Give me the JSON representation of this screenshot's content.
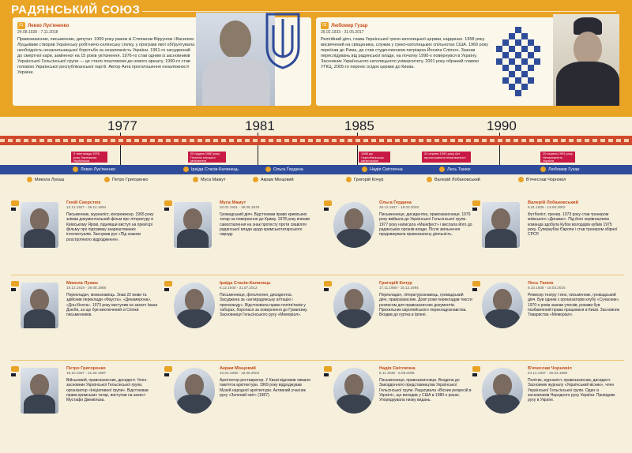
{
  "page": {
    "title": "РАДЯНСЬКИЙ СОЮЗ"
  },
  "featured": [
    {
      "name": "Левко Лук'яненко",
      "dates": "24.08.1928 - 7.11.2018",
      "text": "Правозахисник, письменник, депутат. 1959 року разом зі Степаном Вірууном і Василем Луцьківим створив Українську робітничо-селянську спілку, у програмі якої обґрунтувала необхідність ненасильницької боротьби за незалежність України. 1961-го засуджений до смертної кари, заміненої на 15 років ув'язнення. 1976-го став одним із засновників Української Гельсінської групи — це стало поштовхом до нового арешту. 1990-го став головою Української республіканської партії. Автор Акта проголошення незалежності України."
    },
    {
      "name": "Любомир Гузар",
      "dates": "26.02.1933 - 31.05.2017",
      "text": "Релігійний діяч, глава Української греко-католицької церкви, кардинал. 1958 року висвячений на священика, служив у греко-католицьких спільнотах США. 1969 року переїхав до Рима, де став студентиенком патріарха Йосипа Сліпого. Зазнав переслідувань від радянської влади, на початку 1990-х повернувся в Україну. Засновник Українського католицького університету. 2001 року обраний главою УГКЦ, 2005-го переніс осідок церкви до Києва."
    }
  ],
  "timeline": {
    "years": [
      "1977",
      "1981",
      "1985",
      "1990"
    ],
    "events": [
      "9 листопада 1976 року Заснована Українська Гельсінська група",
      "20 грудня 1980 року Початок першого ув'язнення",
      "1986 рік Чорнобильська катастрофа",
      "24 серпня 1991 року Акт проголошення незалежності",
      "20 серпня 1991 року Незалежність України"
    ],
    "bar_names": [
      "Левко Лук'яненко",
      "Іраїда Стасів-Калинець",
      "Ольга Ґердина",
      "Надія Світлична",
      "Лесь Танюк",
      "Любомир Гузар"
    ],
    "below_names": [
      "Микола Лукаш",
      "Петро Григоренко",
      "Муса Мамут",
      "Акрам Мінцовий",
      "Григорій Кочур",
      "Валерій Лобановський",
      "В'ячеслав Чорновіл"
    ]
  },
  "cards": [
    {
      "name": "Геній Сверстюк",
      "dates": "13.12.1927 - 28.12.1994",
      "text": "Письменник, журналіст, кінорежисер. 1965 року знімав документальний фільм про літературу в Київському Ярові, піднявши виступ на прем'єрі фільму про підтримку заарештованих інтелектуалів. Заснував рух «Під знаком розстріляного відродження»."
    },
    {
      "name": "Муса Мамут",
      "dates": "20.02.1931 - 28.06.1978",
      "text": "Громадський діяч. Відстоював право кримських татар на повернення до Криму. 1978 року вчинив самоспалення на знак протесту проти свавілля радянської влади щодо кримськотатарського народу."
    },
    {
      "name": "Ольга Ґердина",
      "dates": "29.12.1927 - 18.03.2003",
      "text": "Письменниця, дисидентка, правозахисниця. 1976 року ввійшла до Української Гельсінської групи. 1977 року написала «Маніфест» і вислала його до радянських органів влади. Після звільнення продовжувала правозахисну діяльність."
    },
    {
      "name": "Валерій Лобановський",
      "dates": "6.01.1939 - 13.05.2002",
      "text": "Футболіст, тренер. 1973 року став тренером київського «Динамо». Під його керівництвом команда здобула Кубок володарів кубків 1975 року, Суперкубок Європи і став тренером збірної СРСР."
    },
    {
      "name": "Микола Лукаш",
      "dates": "19.12.1919 - 29.08.1988",
      "text": "Перекладач, мовознавець. Знав 22 мови та здійснив переклади «Фауста», «Декамерона», «Дон Кіхота». 1973 року виступив на захист Івана Дзюби, за що був виключений зі Спілки письменників."
    },
    {
      "name": "Іраїда Стасів-Калинець",
      "dates": "6.12.1940 - 31.07.2012",
      "text": "Письменниця, філологиня, дисидентка. Засуджена за «антирадянську агітацію і пропаганду». Відстоювала права політв'язнів у таборах, боролася за повернення до Гуманізму. Засновниця Гельсінського руху «Меморіал»."
    },
    {
      "name": "Григорій Кочур",
      "dates": "17.11.1908 - 15.12.1994",
      "text": "Перекладач, літературознавець, громадський діяч, правозахисник. Довгі роки перекладав тексти розписом для правозахисних документів. Прихильник європейського перекладознавства. Входив до гуртка в Ірпені."
    },
    {
      "name": "Лесь Танюк",
      "dates": "8.10.1938 - 18.03.2016",
      "text": "Режисер театру і кіно, письменник, громадський діяч. Був одним з організаторів клубу «Сучасник». 1970-х років зазнав утисків, роками був позбавлений права працювати в Києві. Засновник Товариства «Меморіал»."
    },
    {
      "name": "Петро Григоренко",
      "dates": "16.10.1907 - 21.02.1987",
      "text": "Військовий, правозахисник, дисидент. Член-засновник Української Гельсінської групи, організатор «Ініціативної групи». Відстоював права кримських татар, виступав на захист Мустафи Джемілєва."
    },
    {
      "name": "Акрам Мінцовий",
      "dates": "10.03.1938 - 16.06.2004",
      "text": "Архітектор-реставратор. У Києві відновив чимало пам'яток архітектури. 1969 року відроджував Музей народної архітектури. Активний учасник руху «Зелений світ» (1987)."
    },
    {
      "name": "Надія Світлична",
      "dates": "8.11.1936 - 8.09.2006",
      "text": "Письменниця, правозахисниця. Входила до Закордонного представництва Української Гельсінської групи. Редагувала «Вісник репресій в Україні», що виходив у США в 1980-х роках. Упорядкувала низку видань."
    },
    {
      "name": "В'ячеслав Чорновіл",
      "dates": "24.12.1937 - 25.03.1999",
      "text": "Політик, журналіст, правозахисник, дисидент. Засновник журналу «Український вісник», член Української Гельсінської групи. Один із засновників Народного руху України. Провідник руху в Україні."
    }
  ]
}
